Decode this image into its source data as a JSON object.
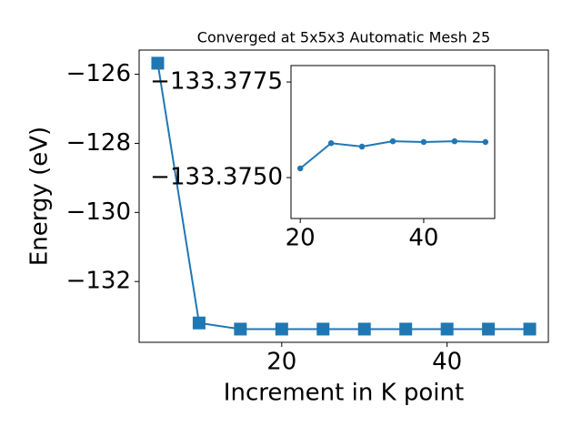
{
  "chart_data": [
    {
      "type": "line",
      "title": "Converged at 5x5x3 Automatic Mesh 25",
      "x_label": "Increment in K point",
      "y_label": "Energy (eV)",
      "x": [
        5,
        10,
        15,
        20,
        25,
        30,
        35,
        40,
        45,
        50
      ],
      "values": [
        -125.68,
        -133.2,
        -133.377,
        -133.377,
        -133.377,
        -133.377,
        -133.377,
        -133.377,
        -133.377,
        -133.377
      ],
      "color": "#1f77b4",
      "marker": "square",
      "xlim": [
        2.75,
        52.25
      ],
      "xticks": [
        20,
        40
      ],
      "ylim": [
        -133.76,
        -125.3
      ],
      "yticks": [
        {
          "value": -132,
          "label": "−132"
        },
        {
          "value": -130,
          "label": "−130"
        },
        {
          "value": -128,
          "label": "−128"
        },
        {
          "value": -126,
          "label": "−126"
        }
      ]
    },
    {
      "type": "line",
      "x": [
        20,
        25,
        30,
        35,
        40,
        45,
        50
      ],
      "values": [
        -133.37524,
        -133.3759,
        -133.37581,
        -133.37595,
        -133.37593,
        -133.37595,
        -133.37593
      ],
      "color": "#1f77b4",
      "marker": "circle",
      "xlim": [
        18.5,
        51.5
      ],
      "xticks": [
        20,
        40
      ],
      "ylim": [
        -133.37393,
        -133.37793
      ],
      "yticks": [
        {
          "value": -133.375,
          "label": "−133.3750"
        },
        {
          "value": -133.3775,
          "label": "−133.3775"
        }
      ]
    }
  ]
}
